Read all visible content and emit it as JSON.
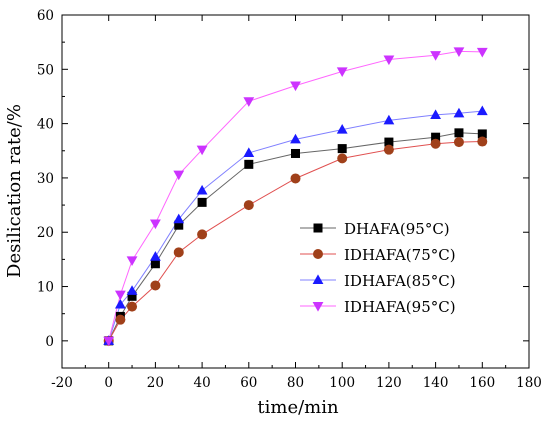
{
  "chart_data": {
    "type": "line",
    "xlabel": "time/min",
    "ylabel": "Desilication rate/%",
    "xlim": [
      -20,
      180
    ],
    "ylim": [
      -5,
      60
    ],
    "xticks": [
      -20,
      0,
      20,
      40,
      60,
      80,
      100,
      120,
      140,
      160,
      180
    ],
    "yticks": [
      0,
      10,
      20,
      30,
      40,
      50,
      60
    ],
    "legend_position": "bottom-right",
    "grid": false,
    "series": [
      {
        "name": "DHAFA(95°C)",
        "marker": "square",
        "color": "#000000",
        "line_color": "#666666",
        "x": [
          0,
          5,
          10,
          20,
          30,
          40,
          60,
          80,
          100,
          120,
          140,
          150,
          160
        ],
        "y": [
          0,
          4.5,
          8.2,
          14.2,
          21.3,
          25.5,
          32.5,
          34.5,
          35.4,
          36.6,
          37.5,
          38.3,
          38.1
        ]
      },
      {
        "name": "IDHAFA(75°C)",
        "marker": "circle",
        "color": "#a0401a",
        "line_color": "#e05050",
        "x": [
          0,
          5,
          10,
          20,
          30,
          40,
          60,
          80,
          100,
          120,
          140,
          150,
          160
        ],
        "y": [
          0,
          3.9,
          6.3,
          10.2,
          16.3,
          19.6,
          25.0,
          29.9,
          33.6,
          35.2,
          36.3,
          36.6,
          36.7
        ]
      },
      {
        "name": "IDHAFA(85°C)",
        "marker": "triangle-up",
        "color": "#1a1aff",
        "line_color": "#8080ff",
        "x": [
          0,
          5,
          10,
          20,
          30,
          40,
          60,
          80,
          100,
          120,
          140,
          150,
          160
        ],
        "y": [
          0,
          6.7,
          9.2,
          15.5,
          22.4,
          27.7,
          34.6,
          37.1,
          38.9,
          40.6,
          41.6,
          41.9,
          42.3
        ]
      },
      {
        "name": "IDHAFA(95°C)",
        "marker": "triangle-down",
        "color": "#cc33ff",
        "line_color": "#ff66ff",
        "x": [
          0,
          5,
          10,
          20,
          30,
          40,
          60,
          80,
          100,
          120,
          140,
          150,
          160
        ],
        "y": [
          0,
          8.5,
          14.8,
          21.6,
          30.6,
          35.2,
          44.1,
          47.0,
          49.6,
          51.8,
          52.6,
          53.3,
          53.2
        ]
      }
    ]
  }
}
